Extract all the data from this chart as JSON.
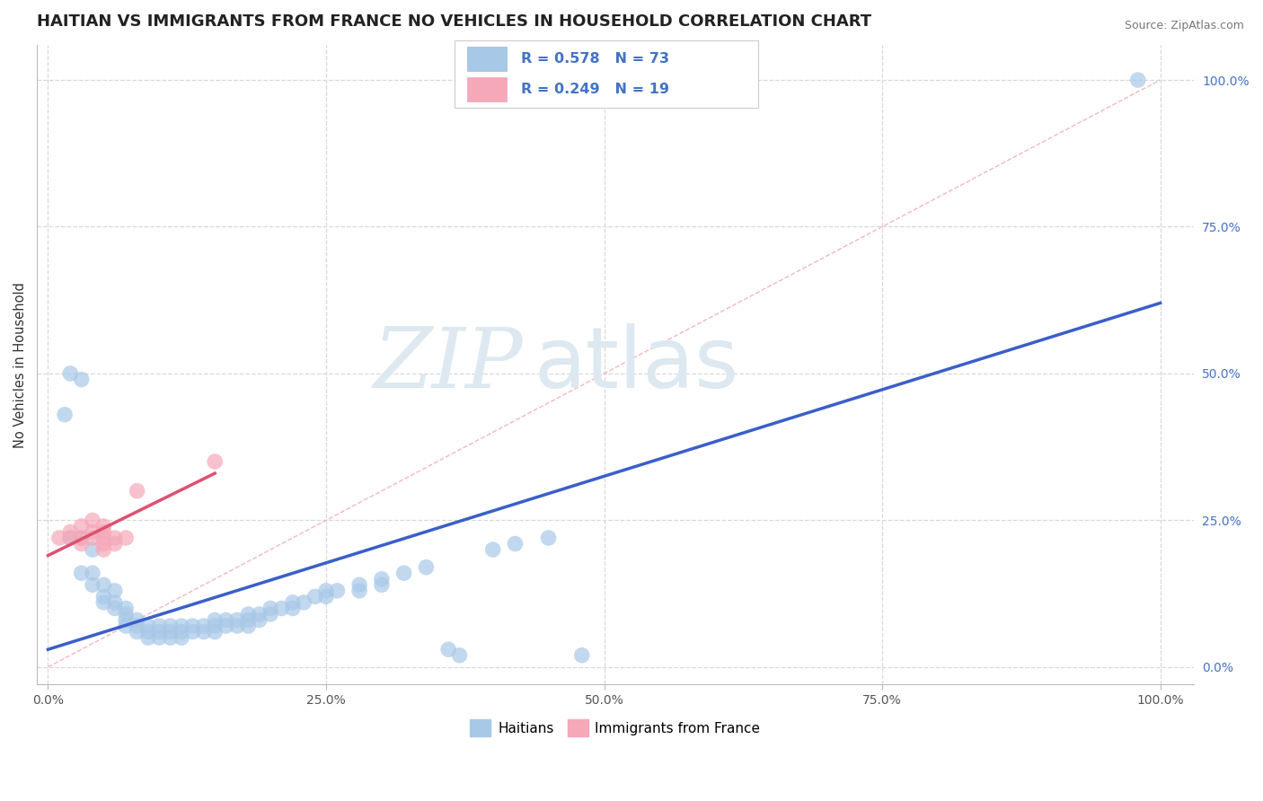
{
  "title": "HAITIAN VS IMMIGRANTS FROM FRANCE NO VEHICLES IN HOUSEHOLD CORRELATION CHART",
  "source": "Source: ZipAtlas.com",
  "ylabel": "No Vehicles in Household",
  "x_ticks": [
    "0.0%",
    "25.0%",
    "50.0%",
    "75.0%",
    "100.0%"
  ],
  "y_ticks": [
    "0.0%",
    "25.0%",
    "50.0%",
    "75.0%",
    "100.0%"
  ],
  "x_tick_vals": [
    0,
    25,
    50,
    75,
    100
  ],
  "y_tick_vals": [
    0,
    25,
    50,
    75,
    100
  ],
  "diagonal_line_color": "#f4b8c0",
  "blue_line_color": "#3a5fc8",
  "pink_line_color": "#e05070",
  "blue_scatter_color": "#a8c8e8",
  "pink_scatter_color": "#f4a8b8",
  "grid_color": "#d8d8d8",
  "bg_color": "#ffffff",
  "title_fontsize": 13,
  "tick_fontsize": 10,
  "watermark_color": "#dde8f0",
  "blue_points": [
    [
      1.5,
      43
    ],
    [
      3,
      49
    ],
    [
      2,
      50
    ],
    [
      2,
      22
    ],
    [
      3,
      22
    ],
    [
      4,
      20
    ],
    [
      3,
      16
    ],
    [
      4,
      16
    ],
    [
      4,
      14
    ],
    [
      5,
      14
    ],
    [
      5,
      12
    ],
    [
      6,
      13
    ],
    [
      5,
      11
    ],
    [
      6,
      11
    ],
    [
      6,
      10
    ],
    [
      7,
      10
    ],
    [
      7,
      9
    ],
    [
      7,
      8
    ],
    [
      7,
      7
    ],
    [
      8,
      8
    ],
    [
      8,
      7
    ],
    [
      8,
      6
    ],
    [
      9,
      7
    ],
    [
      9,
      6
    ],
    [
      9,
      5
    ],
    [
      10,
      7
    ],
    [
      10,
      6
    ],
    [
      10,
      5
    ],
    [
      11,
      7
    ],
    [
      11,
      6
    ],
    [
      11,
      5
    ],
    [
      12,
      7
    ],
    [
      12,
      6
    ],
    [
      12,
      5
    ],
    [
      13,
      7
    ],
    [
      13,
      6
    ],
    [
      14,
      7
    ],
    [
      14,
      6
    ],
    [
      15,
      8
    ],
    [
      15,
      7
    ],
    [
      15,
      6
    ],
    [
      16,
      8
    ],
    [
      16,
      7
    ],
    [
      17,
      8
    ],
    [
      17,
      7
    ],
    [
      18,
      9
    ],
    [
      18,
      8
    ],
    [
      18,
      7
    ],
    [
      19,
      9
    ],
    [
      19,
      8
    ],
    [
      20,
      10
    ],
    [
      20,
      9
    ],
    [
      21,
      10
    ],
    [
      22,
      11
    ],
    [
      22,
      10
    ],
    [
      23,
      11
    ],
    [
      24,
      12
    ],
    [
      25,
      13
    ],
    [
      25,
      12
    ],
    [
      26,
      13
    ],
    [
      28,
      14
    ],
    [
      28,
      13
    ],
    [
      30,
      15
    ],
    [
      30,
      14
    ],
    [
      32,
      16
    ],
    [
      34,
      17
    ],
    [
      36,
      3
    ],
    [
      37,
      2
    ],
    [
      40,
      20
    ],
    [
      42,
      21
    ],
    [
      45,
      22
    ],
    [
      48,
      2
    ],
    [
      98,
      100
    ]
  ],
  "pink_points": [
    [
      1,
      22
    ],
    [
      2,
      23
    ],
    [
      2,
      22
    ],
    [
      3,
      24
    ],
    [
      3,
      22
    ],
    [
      3,
      21
    ],
    [
      4,
      25
    ],
    [
      4,
      23
    ],
    [
      4,
      22
    ],
    [
      5,
      24
    ],
    [
      5,
      23
    ],
    [
      5,
      22
    ],
    [
      5,
      21
    ],
    [
      5,
      20
    ],
    [
      6,
      22
    ],
    [
      6,
      21
    ],
    [
      7,
      22
    ],
    [
      8,
      30
    ],
    [
      15,
      35
    ]
  ],
  "blue_line_x": [
    0,
    100
  ],
  "blue_line_y": [
    3,
    62
  ],
  "pink_line_x": [
    0,
    15
  ],
  "pink_line_y": [
    19,
    33
  ]
}
